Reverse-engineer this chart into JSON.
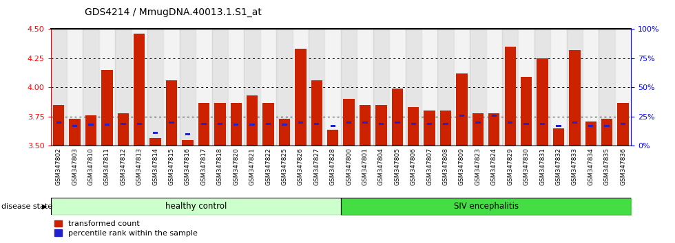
{
  "title": "GDS4214 / MmugDNA.40013.1.S1_at",
  "samples": [
    "GSM347802",
    "GSM347803",
    "GSM347810",
    "GSM347811",
    "GSM347812",
    "GSM347813",
    "GSM347814",
    "GSM347815",
    "GSM347816",
    "GSM347817",
    "GSM347818",
    "GSM347820",
    "GSM347821",
    "GSM347822",
    "GSM347825",
    "GSM347826",
    "GSM347827",
    "GSM347828",
    "GSM347800",
    "GSM347801",
    "GSM347804",
    "GSM347805",
    "GSM347806",
    "GSM347807",
    "GSM347808",
    "GSM347809",
    "GSM347823",
    "GSM347824",
    "GSM347829",
    "GSM347830",
    "GSM347831",
    "GSM347832",
    "GSM347833",
    "GSM347834",
    "GSM347835",
    "GSM347836"
  ],
  "transformed_count": [
    3.85,
    3.73,
    3.76,
    4.15,
    3.78,
    4.46,
    3.57,
    4.06,
    3.55,
    3.87,
    3.87,
    3.87,
    3.93,
    3.87,
    3.73,
    4.33,
    4.06,
    3.64,
    3.9,
    3.85,
    3.85,
    3.99,
    3.83,
    3.8,
    3.8,
    4.12,
    3.78,
    3.78,
    4.35,
    4.09,
    4.25,
    3.65,
    4.32,
    3.71,
    3.73,
    3.87
  ],
  "percentile_rank_pct": [
    20,
    17,
    18,
    18,
    19,
    19,
    11,
    20,
    10,
    19,
    19,
    18,
    18,
    19,
    18,
    20,
    19,
    17,
    20,
    20,
    19,
    20,
    19,
    19,
    19,
    26,
    20,
    26,
    20,
    19,
    19,
    17,
    20,
    17,
    17,
    19
  ],
  "healthy_control_count": 18,
  "bar_color": "#cc2200",
  "percentile_color": "#2222cc",
  "ymin": 3.5,
  "ymax": 4.5,
  "y_ticks_left": [
    3.5,
    3.75,
    4.0,
    4.25,
    4.5
  ],
  "y_ticks_right": [
    0,
    25,
    50,
    75,
    100
  ],
  "grid_values": [
    3.75,
    4.0,
    4.25
  ],
  "healthy_color": "#ccffcc",
  "siv_color": "#44dd44",
  "label_healthy": "healthy control",
  "label_siv": "SIV encephalitis",
  "disease_state_label": "disease state",
  "legend_transformed": "transformed count",
  "legend_percentile": "percentile rank within the sample",
  "bar_width": 0.7
}
